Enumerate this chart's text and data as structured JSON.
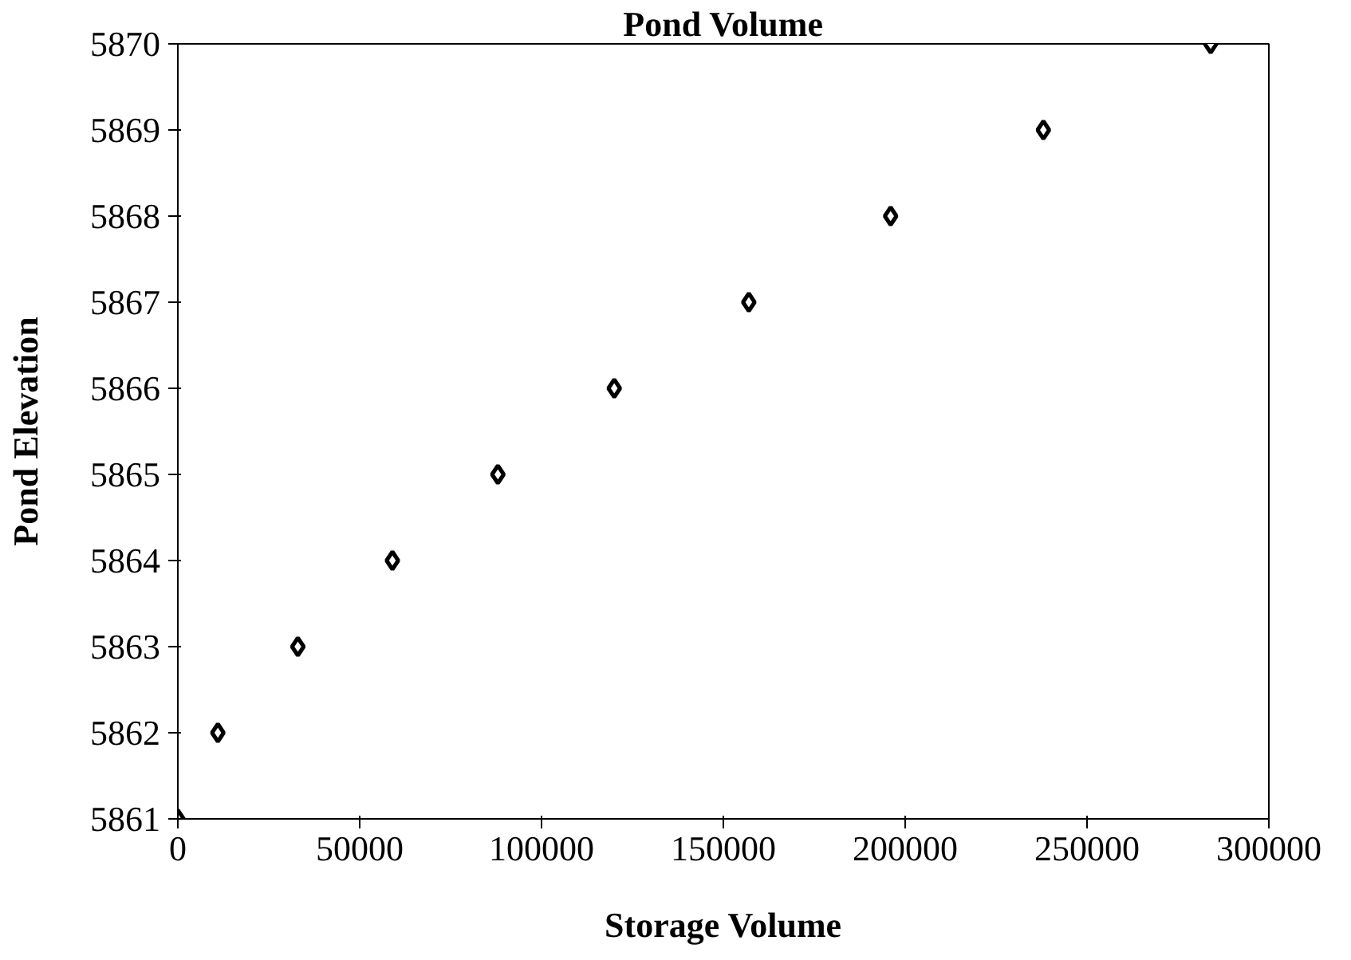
{
  "chart_data": {
    "type": "scatter",
    "title": "Pond Volume",
    "xlabel": "Storage Volume",
    "ylabel": "Pond Elevation",
    "x": [
      0,
      11000,
      33000,
      59000,
      88000,
      120000,
      157000,
      196000,
      238000,
      284000
    ],
    "values": [
      5861,
      5862,
      5863,
      5864,
      5865,
      5866,
      5867,
      5868,
      5869,
      5870
    ],
    "color": "#000000",
    "marker": "diamond",
    "xlim": [
      0,
      300000
    ],
    "xticks": [
      0,
      50000,
      100000,
      150000,
      200000,
      250000,
      300000
    ],
    "ylim": [
      5861,
      5870
    ],
    "yticks": [
      5861,
      5862,
      5863,
      5864,
      5865,
      5866,
      5867,
      5868,
      5869,
      5870
    ],
    "grid": false
  }
}
